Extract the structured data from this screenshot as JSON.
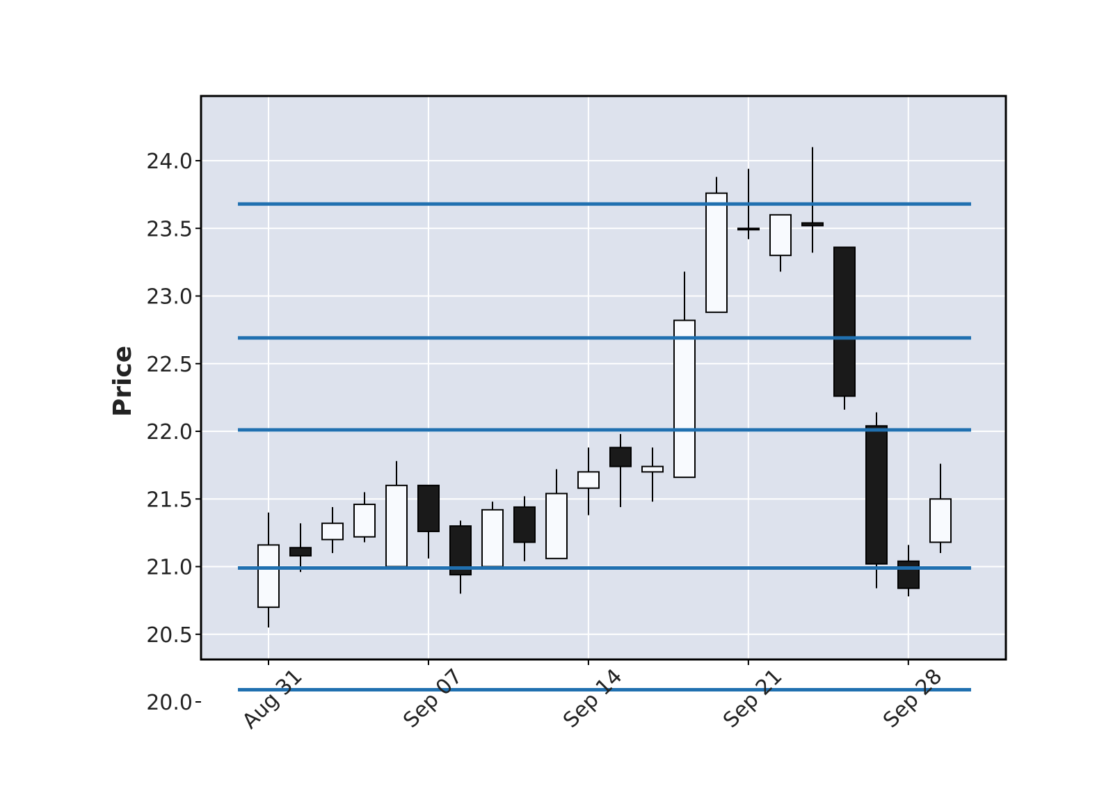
{
  "chart_data": {
    "type": "candlestick",
    "title": "",
    "xlabel": "",
    "ylabel": "Price",
    "ylim": [
      19.9,
      24.3
    ],
    "yticks": [
      "20.0",
      "20.5",
      "21.0",
      "21.5",
      "22.0",
      "22.5",
      "23.0",
      "23.5",
      "24.0"
    ],
    "xticks": [
      {
        "label": "Aug 31",
        "date": "2020-08-31"
      },
      {
        "label": "Sep 07",
        "date": "2020-09-07"
      },
      {
        "label": "Sep 14",
        "date": "2020-09-14"
      },
      {
        "label": "Sep 21",
        "date": "2020-09-21"
      },
      {
        "label": "Sep 28",
        "date": "2020-09-28"
      }
    ],
    "grid": true,
    "colors": {
      "background": "#dde2ed",
      "grid": "#ffffff",
      "up_body": "#f8fafe",
      "down_body": "#1a1a1a",
      "wick": "#000000",
      "hlines": "#2070b0",
      "frame": "#000000"
    },
    "hlines": [
      20.09,
      20.99,
      22.01,
      22.69,
      23.68
    ],
    "candles": [
      {
        "date": "2020-08-31",
        "open": 20.7,
        "high": 21.4,
        "low": 20.55,
        "close": 21.16
      },
      {
        "date": "2020-09-01",
        "open": 21.14,
        "high": 21.32,
        "low": 20.96,
        "close": 21.08
      },
      {
        "date": "2020-09-02",
        "open": 21.2,
        "high": 21.44,
        "low": 21.1,
        "close": 21.32
      },
      {
        "date": "2020-09-03",
        "open": 21.22,
        "high": 21.55,
        "low": 21.18,
        "close": 21.46
      },
      {
        "date": "2020-09-04",
        "open": 21.0,
        "high": 21.78,
        "low": 21.0,
        "close": 21.6
      },
      {
        "date": "2020-09-05",
        "open": 21.6,
        "high": 21.6,
        "low": 21.06,
        "close": 21.26
      },
      {
        "date": "2020-09-06",
        "open": 21.3,
        "high": 21.34,
        "low": 20.8,
        "close": 20.94
      },
      {
        "date": "2020-09-07",
        "open": 21.0,
        "high": 21.48,
        "low": 21.0,
        "close": 21.42
      },
      {
        "date": "2020-09-08",
        "open": 21.44,
        "high": 21.52,
        "low": 21.04,
        "close": 21.18
      },
      {
        "date": "2020-09-09",
        "open": 21.06,
        "high": 21.72,
        "low": 21.06,
        "close": 21.54
      },
      {
        "date": "2020-09-10",
        "open": 21.58,
        "high": 21.88,
        "low": 21.38,
        "close": 21.7
      },
      {
        "date": "2020-09-11",
        "open": 21.88,
        "high": 21.98,
        "low": 21.44,
        "close": 21.74
      },
      {
        "date": "2020-09-12",
        "open": 21.7,
        "high": 21.88,
        "low": 21.48,
        "close": 21.74
      },
      {
        "date": "2020-09-13",
        "open": 21.66,
        "high": 23.18,
        "low": 21.66,
        "close": 22.82
      },
      {
        "date": "2020-09-14",
        "open": 22.88,
        "high": 23.88,
        "low": 22.88,
        "close": 23.76
      },
      {
        "date": "2020-09-15",
        "open": 23.5,
        "high": 23.94,
        "low": 23.42,
        "close": 23.5
      },
      {
        "date": "2020-09-16",
        "open": 23.3,
        "high": 23.6,
        "low": 23.18,
        "close": 23.6
      },
      {
        "date": "2020-09-17",
        "open": 23.54,
        "high": 24.1,
        "low": 23.32,
        "close": 23.52
      },
      {
        "date": "2020-09-18",
        "open": 23.36,
        "high": 23.36,
        "low": 22.16,
        "close": 22.26
      },
      {
        "date": "2020-09-19",
        "open": 22.04,
        "high": 22.14,
        "low": 20.84,
        "close": 21.02
      },
      {
        "date": "2020-09-20",
        "open": 21.04,
        "high": 21.16,
        "low": 20.78,
        "close": 20.84
      },
      {
        "date": "2020-09-21",
        "open": 21.18,
        "high": 21.76,
        "low": 21.1,
        "close": 21.5
      }
    ]
  }
}
